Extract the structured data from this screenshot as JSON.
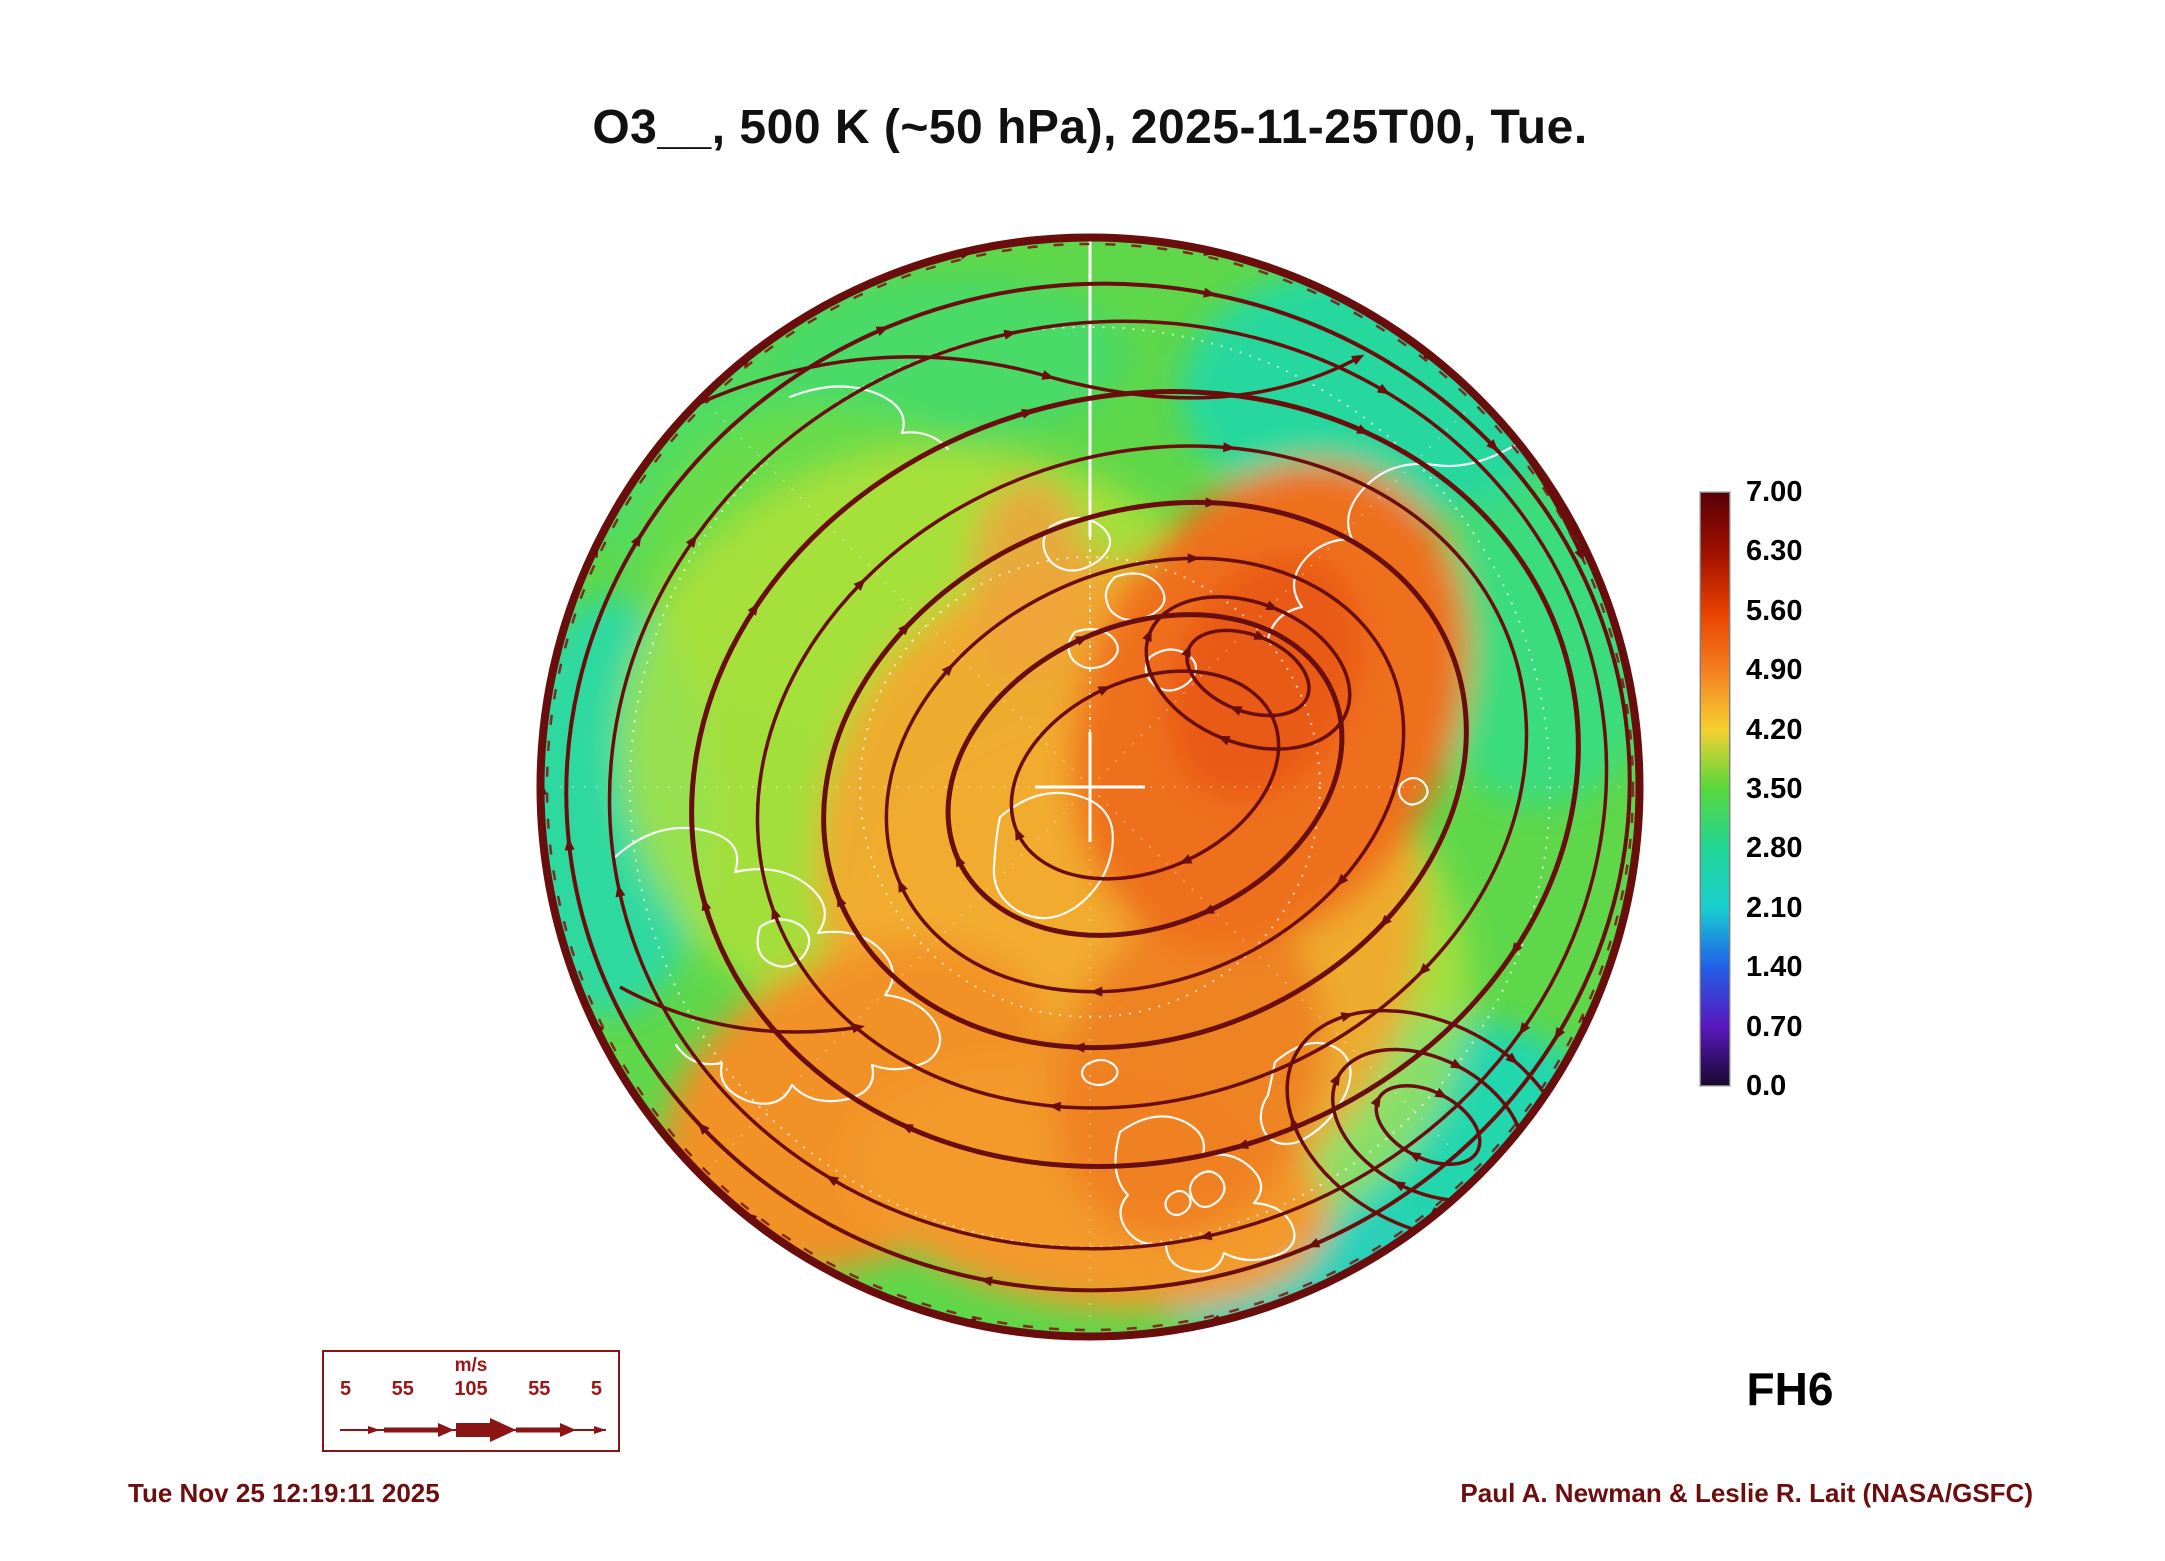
{
  "title": "O3__, 500 K (~50 hPa), 2025-11-25T00, Tue.",
  "labels": {
    "forecast": "FH6",
    "timestamp": "Tue Nov 25 12:19:11 2025",
    "credit": "Paul A. Newman & Leslie R. Lait (NASA/GSFC)"
  },
  "colorbar": {
    "ticks": [
      "7.00",
      "6.30",
      "5.60",
      "4.90",
      "4.20",
      "3.50",
      "2.80",
      "2.10",
      "1.40",
      "0.70",
      "0.0"
    ]
  },
  "wind_legend": {
    "unit": "m/s",
    "values": [
      "5",
      "55",
      "105",
      "55",
      "5"
    ]
  },
  "colors": {
    "streamline": "#6a0d0d",
    "coastline": "#ffffff",
    "legend_red": "#9b1616"
  },
  "chart_data": {
    "type": "heatmap",
    "title": "O3__, 500 K (~50 hPa), 2025-11-25T00, Tue.",
    "field": "O3",
    "surface": "500 K (~50 hPa)",
    "valid_time": "2025-11-25T00, Tue.",
    "forecast_hour_label": "FH6",
    "projection": "north-polar hemispheric view",
    "colorbar": {
      "orientation": "vertical",
      "range": [
        0.0,
        7.0
      ],
      "tick_values": [
        7.0,
        6.3,
        5.6,
        4.9,
        4.2,
        3.5,
        2.8,
        2.1,
        1.4,
        0.7,
        0.0
      ],
      "colors_top_to_bottom": [
        "#5a0007",
        "#a01000",
        "#e84000",
        "#f58020",
        "#f5d030",
        "#55d83c",
        "#22d695",
        "#18cfd0",
        "#2060e8",
        "#5a18c0",
        "#1a0830"
      ]
    },
    "overlays": [
      {
        "name": "wind streamlines",
        "color": "#6a0d0d",
        "speed_scale_ms": [
          5,
          55,
          105,
          55,
          5
        ]
      },
      {
        "name": "coastlines",
        "color": "#ffffff"
      },
      {
        "name": "graticule",
        "color": "#ffffff"
      }
    ],
    "field_summary": "High O3 (~4.5-6.0, orange) forms a crescent over the Atlantic/Eurasian side with a closed circulation maximum right of center; lower O3 (~2.5-3.5, green/teal) over the periphery, top-right and bottom-right sectors.",
    "footer": {
      "generated": "Tue Nov 25 12:19:11 2025",
      "credit": "Paul A. Newman & Leslie R. Lait (NASA/GSFC)"
    }
  }
}
